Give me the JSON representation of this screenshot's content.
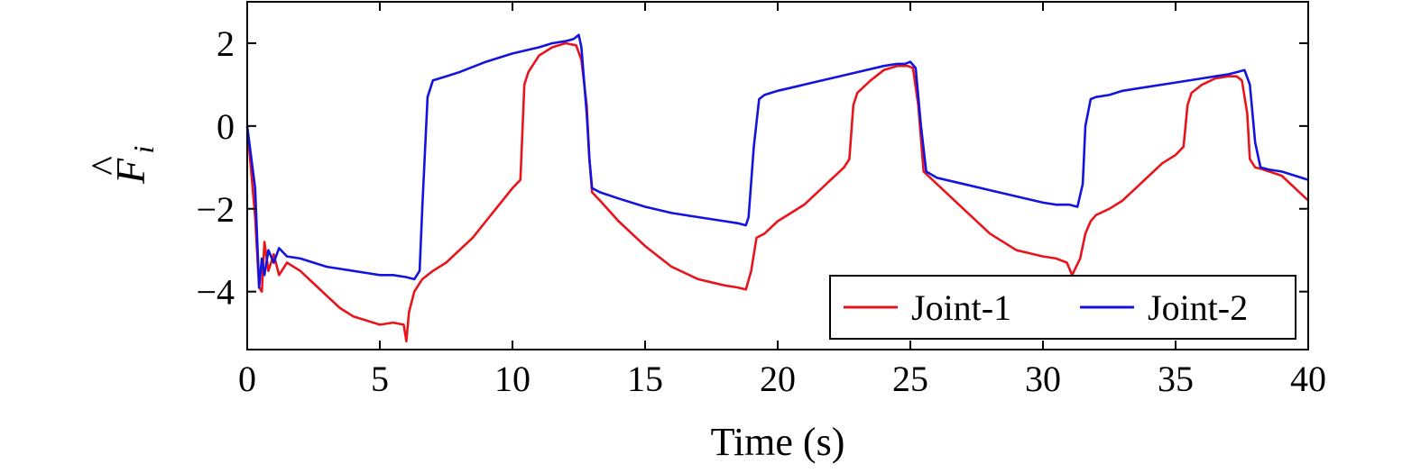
{
  "chart_data": {
    "type": "line",
    "xlabel": "Time (s)",
    "ylabel": {
      "main": "F",
      "accent": "^",
      "subscript": "i"
    },
    "xlim": [
      0,
      40
    ],
    "ylim": [
      -5.4,
      3.0
    ],
    "xticks": [
      0,
      5,
      10,
      15,
      20,
      25,
      30,
      35,
      40
    ],
    "xtick_labels": [
      "0",
      "5",
      "10",
      "15",
      "20",
      "25",
      "30",
      "35",
      "40"
    ],
    "yticks": [
      -4,
      -2,
      0,
      2
    ],
    "ytick_labels": [
      "−4",
      "−2",
      "0",
      "2"
    ],
    "grid": false,
    "legend": {
      "placement": "lower-right",
      "columns": 2
    },
    "series": [
      {
        "name": "Joint-1",
        "color": "#e8141b",
        "x": [
          0.0,
          0.3,
          0.45,
          0.55,
          0.65,
          0.8,
          1.0,
          1.2,
          1.5,
          2.0,
          2.5,
          3.0,
          3.5,
          4.0,
          4.5,
          5.0,
          5.5,
          5.9,
          6.0,
          6.1,
          6.3,
          6.6,
          7.0,
          7.5,
          8.0,
          8.5,
          9.0,
          9.5,
          10.0,
          10.3,
          10.45,
          10.6,
          11.0,
          11.5,
          12.0,
          12.4,
          12.6,
          12.8,
          12.9,
          13.0,
          13.3,
          14.0,
          15.0,
          16.0,
          17.0,
          18.0,
          18.5,
          18.8,
          19.0,
          19.2,
          19.5,
          20.0,
          20.5,
          21.0,
          21.5,
          22.0,
          22.5,
          22.7,
          22.85,
          23.0,
          23.5,
          24.0,
          24.5,
          24.9,
          25.1,
          25.3,
          25.5,
          26.0,
          27.0,
          28.0,
          29.0,
          30.0,
          30.5,
          30.9,
          31.1,
          31.4,
          31.6,
          31.8,
          32.0,
          32.5,
          33.0,
          33.5,
          34.0,
          34.5,
          35.0,
          35.3,
          35.45,
          35.6,
          36.0,
          36.5,
          37.0,
          37.3,
          37.5,
          37.7,
          37.8,
          38.0,
          38.3,
          39.0,
          39.5,
          40.0
        ],
        "y": [
          0.0,
          -2.2,
          -3.9,
          -4.0,
          -2.8,
          -3.5,
          -3.1,
          -3.6,
          -3.3,
          -3.5,
          -3.8,
          -4.1,
          -4.4,
          -4.6,
          -4.7,
          -4.8,
          -4.75,
          -4.8,
          -5.2,
          -4.5,
          -4.0,
          -3.7,
          -3.5,
          -3.3,
          -3.0,
          -2.7,
          -2.3,
          -1.9,
          -1.5,
          -1.3,
          1.0,
          1.3,
          1.7,
          1.9,
          2.0,
          1.95,
          1.6,
          0.5,
          -0.8,
          -1.6,
          -1.8,
          -2.3,
          -2.9,
          -3.4,
          -3.7,
          -3.85,
          -3.9,
          -3.95,
          -3.5,
          -2.7,
          -2.6,
          -2.3,
          -2.1,
          -1.9,
          -1.6,
          -1.3,
          -1.0,
          -0.8,
          0.5,
          0.8,
          1.1,
          1.35,
          1.45,
          1.45,
          1.4,
          0.5,
          -1.1,
          -1.4,
          -2.0,
          -2.6,
          -3.0,
          -3.15,
          -3.2,
          -3.3,
          -3.6,
          -3.2,
          -2.6,
          -2.3,
          -2.15,
          -2.0,
          -1.8,
          -1.5,
          -1.2,
          -0.9,
          -0.7,
          -0.5,
          0.5,
          0.8,
          1.0,
          1.15,
          1.2,
          1.2,
          1.1,
          0.3,
          -0.8,
          -1.0,
          -1.05,
          -1.2,
          -1.5,
          -1.8
        ]
      },
      {
        "name": "Joint-2",
        "color": "#1313e0",
        "x": [
          0.0,
          0.3,
          0.45,
          0.55,
          0.65,
          0.8,
          1.0,
          1.2,
          1.5,
          2.0,
          2.5,
          3.0,
          3.5,
          4.0,
          4.5,
          5.0,
          5.5,
          6.0,
          6.3,
          6.5,
          6.6,
          6.8,
          7.0,
          7.5,
          8.0,
          9.0,
          10.0,
          11.0,
          11.5,
          12.0,
          12.3,
          12.5,
          12.6,
          12.8,
          12.9,
          13.0,
          13.3,
          14.0,
          15.0,
          16.0,
          17.0,
          18.0,
          18.5,
          18.8,
          18.9,
          19.1,
          19.3,
          19.5,
          20.0,
          21.0,
          22.0,
          23.0,
          24.0,
          24.5,
          24.8,
          25.0,
          25.2,
          25.4,
          25.6,
          26.0,
          27.0,
          28.0,
          29.0,
          30.0,
          30.5,
          31.0,
          31.3,
          31.5,
          31.6,
          31.8,
          32.0,
          32.5,
          33.0,
          34.0,
          35.0,
          36.0,
          36.5,
          37.0,
          37.3,
          37.6,
          37.8,
          38.0,
          38.2,
          38.5,
          39.0,
          39.5,
          40.0
        ],
        "y": [
          0.0,
          -1.5,
          -3.9,
          -3.2,
          -3.6,
          -3.0,
          -3.3,
          -2.95,
          -3.15,
          -3.2,
          -3.3,
          -3.4,
          -3.45,
          -3.5,
          -3.55,
          -3.6,
          -3.6,
          -3.65,
          -3.7,
          -3.5,
          -2.0,
          0.7,
          1.1,
          1.2,
          1.3,
          1.55,
          1.75,
          1.9,
          2.0,
          2.05,
          2.1,
          2.2,
          1.9,
          0.3,
          -0.8,
          -1.5,
          -1.6,
          -1.75,
          -1.95,
          -2.1,
          -2.2,
          -2.3,
          -2.35,
          -2.4,
          -2.2,
          -0.5,
          0.65,
          0.75,
          0.85,
          1.0,
          1.15,
          1.3,
          1.45,
          1.5,
          1.5,
          1.55,
          1.4,
          0.0,
          -1.1,
          -1.25,
          -1.4,
          -1.55,
          -1.7,
          -1.85,
          -1.9,
          -1.9,
          -1.95,
          -1.4,
          0.0,
          0.65,
          0.7,
          0.75,
          0.85,
          0.95,
          1.05,
          1.15,
          1.2,
          1.25,
          1.3,
          1.35,
          1.0,
          -0.4,
          -1.0,
          -1.05,
          -1.1,
          -1.2,
          -1.3
        ]
      }
    ]
  }
}
